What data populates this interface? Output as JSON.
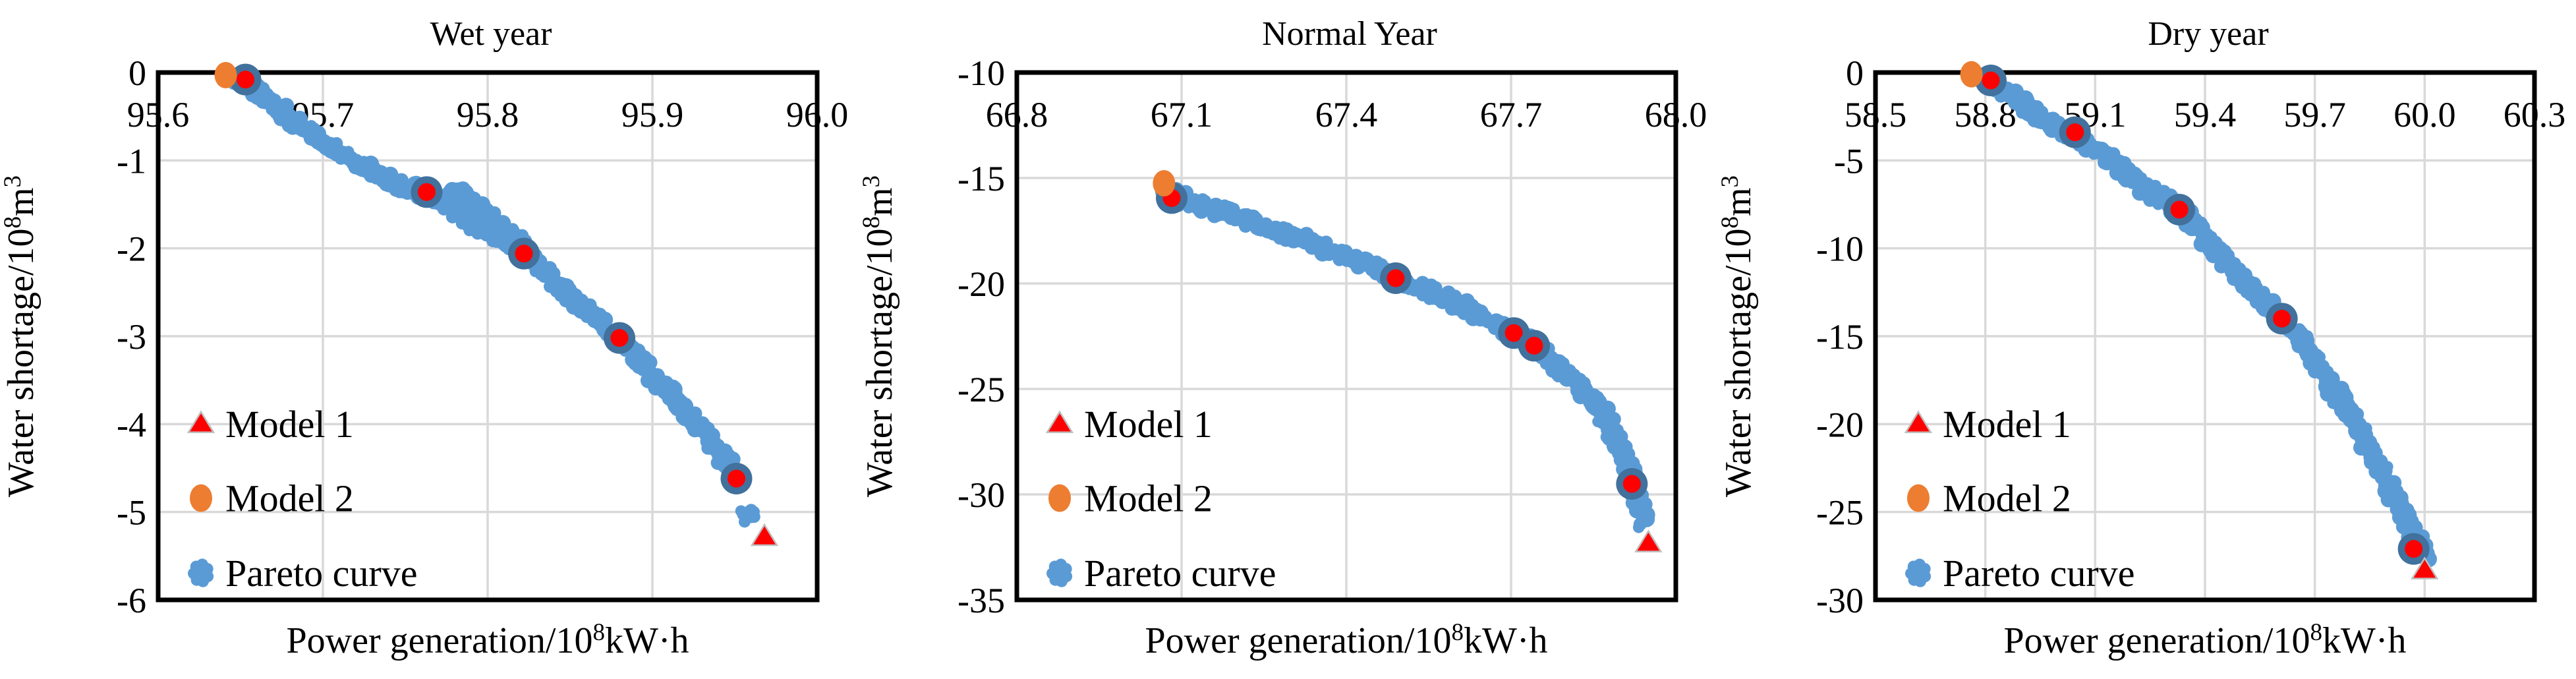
{
  "figure": {
    "background": "#FFFFFF",
    "colors": {
      "pareto": "#5B9BD5",
      "highlight_ring": "#41719C",
      "model1_red": "#FF0000",
      "model1_outline": "#BFBFBF",
      "model2_orange": "#ED7D31",
      "gridline": "#D9D9D9",
      "axis": "#000000",
      "text": "#000000"
    }
  },
  "chart_data": [
    {
      "type": "scatter",
      "title": "Wet year",
      "xlabel": "Power generation/10⁸kW·h",
      "ylabel": "Water shortage/10⁸m³",
      "xlim": [
        95.6,
        96.0
      ],
      "ylim": [
        -6,
        0
      ],
      "xticks": [
        95.6,
        95.7,
        95.8,
        95.9,
        96.0
      ],
      "xtick_labels": [
        "95.6",
        "95.7",
        "95.8",
        "95.9",
        "96.0"
      ],
      "yticks": [
        0,
        -1,
        -2,
        -3,
        -4,
        -5,
        -6
      ],
      "ytick_labels": [
        "0",
        "-1",
        "-2",
        "-3",
        "-4",
        "-5",
        "-6"
      ],
      "grid": true,
      "legend_position": "inside-left-bottom",
      "legend": [
        {
          "name": "Model 1",
          "marker": "triangle",
          "color": "#FF0000"
        },
        {
          "name": "Model 2",
          "marker": "circle",
          "color": "#ED7D31"
        },
        {
          "name": "Pareto curve",
          "marker": "blob",
          "color": "#5B9BD5"
        }
      ],
      "series": {
        "pareto_curve_band": [
          [
            95.648,
            -0.06
          ],
          [
            95.66,
            -0.22
          ],
          [
            95.672,
            -0.4
          ],
          [
            95.684,
            -0.58
          ],
          [
            95.696,
            -0.73
          ],
          [
            95.708,
            -0.88
          ],
          [
            95.722,
            -1.05
          ],
          [
            95.736,
            -1.2
          ],
          [
            95.75,
            -1.3
          ],
          [
            95.763,
            -1.38
          ],
          [
            95.772,
            -1.48
          ],
          [
            95.781,
            -1.6
          ],
          [
            95.79,
            -1.72
          ],
          [
            95.8,
            -1.83
          ],
          [
            95.81,
            -1.93
          ],
          [
            95.822,
            -2.06
          ],
          [
            95.832,
            -2.22
          ],
          [
            95.842,
            -2.4
          ],
          [
            95.852,
            -2.58
          ],
          [
            95.862,
            -2.74
          ],
          [
            95.872,
            -2.89
          ],
          [
            95.882,
            -3.05
          ],
          [
            95.892,
            -3.25
          ],
          [
            95.901,
            -3.45
          ],
          [
            95.91,
            -3.63
          ],
          [
            95.919,
            -3.83
          ],
          [
            95.928,
            -4.04
          ],
          [
            95.937,
            -4.24
          ],
          [
            95.945,
            -4.42
          ],
          [
            95.952,
            -4.6
          ]
        ],
        "pareto_curve_branch": [
          [
            95.778,
            -1.34
          ],
          [
            95.79,
            -1.5
          ],
          [
            95.802,
            -1.66
          ],
          [
            95.814,
            -1.83
          ],
          [
            95.824,
            -1.97
          ]
        ],
        "pareto_curve_outliers": [
          [
            95.958,
            -5.06
          ]
        ],
        "pareto_highlighted": [
          [
            95.653,
            -0.08
          ],
          [
            95.763,
            -1.36
          ],
          [
            95.822,
            -2.06
          ],
          [
            95.88,
            -3.02
          ],
          [
            95.951,
            -4.62
          ]
        ],
        "model_2_point": [
          95.641,
          -0.03
        ],
        "model_1_point": [
          95.968,
          -5.28
        ]
      }
    },
    {
      "type": "scatter",
      "title": "Normal Year",
      "xlabel": "Power generation/10⁸kW·h",
      "ylabel": "Water shortage/10⁸m³",
      "xlim": [
        66.8,
        68.0
      ],
      "ylim": [
        -35,
        -10
      ],
      "xticks": [
        66.8,
        67.1,
        67.4,
        67.7,
        68.0
      ],
      "xtick_labels": [
        "66.8",
        "67.1",
        "67.4",
        "67.7",
        "68.0"
      ],
      "yticks": [
        -10,
        -15,
        -20,
        -25,
        -30,
        -35
      ],
      "ytick_labels": [
        "-10",
        "-15",
        "-20",
        "-25",
        "-30",
        "-35"
      ],
      "grid": true,
      "legend_position": "inside-left-bottom",
      "legend": [
        {
          "name": "Model 1",
          "marker": "triangle",
          "color": "#FF0000"
        },
        {
          "name": "Model 2",
          "marker": "circle",
          "color": "#ED7D31"
        },
        {
          "name": "Pareto curve",
          "marker": "blob",
          "color": "#5B9BD5"
        }
      ],
      "series": {
        "pareto_curve_band": [
          [
            67.075,
            -15.7
          ],
          [
            67.11,
            -16.05
          ],
          [
            67.15,
            -16.4
          ],
          [
            67.19,
            -16.75
          ],
          [
            67.23,
            -17.1
          ],
          [
            67.27,
            -17.45
          ],
          [
            67.31,
            -17.8
          ],
          [
            67.35,
            -18.2
          ],
          [
            67.39,
            -18.6
          ],
          [
            67.43,
            -19.0
          ],
          [
            67.47,
            -19.45
          ],
          [
            67.5,
            -19.8
          ],
          [
            67.54,
            -20.25
          ],
          [
            67.58,
            -20.7
          ],
          [
            67.62,
            -21.2
          ],
          [
            67.66,
            -21.75
          ],
          [
            67.7,
            -22.3
          ],
          [
            67.74,
            -22.9
          ],
          [
            67.77,
            -23.5
          ],
          [
            67.8,
            -24.2
          ],
          [
            67.83,
            -25.0
          ],
          [
            67.86,
            -25.9
          ],
          [
            67.88,
            -26.8
          ],
          [
            67.9,
            -27.8
          ],
          [
            67.915,
            -28.8
          ],
          [
            67.928,
            -29.8
          ],
          [
            67.936,
            -30.7
          ],
          [
            67.94,
            -31.4
          ]
        ],
        "pareto_curve_branch": [],
        "pareto_curve_outliers": [],
        "pareto_highlighted": [
          [
            67.082,
            -15.95
          ],
          [
            67.49,
            -19.75
          ],
          [
            67.705,
            -22.35
          ],
          [
            67.742,
            -22.95
          ],
          [
            67.92,
            -29.5
          ]
        ],
        "model_2_point": [
          67.068,
          -15.25
        ],
        "model_1_point": [
          67.95,
          -32.3
        ]
      }
    },
    {
      "type": "scatter",
      "title": "Dry year",
      "xlabel": "Power generation/10⁸kW·h",
      "ylabel": "Water shortage/10⁸m³",
      "xlim": [
        58.5,
        60.3
      ],
      "ylim": [
        -30,
        0
      ],
      "xticks": [
        58.5,
        58.8,
        59.1,
        59.4,
        59.7,
        60.0,
        60.3
      ],
      "xtick_labels": [
        "58.5",
        "58.8",
        "59.1",
        "59.4",
        "59.7",
        "60.0",
        "60.3"
      ],
      "yticks": [
        0,
        -5,
        -10,
        -15,
        -20,
        -25,
        -30
      ],
      "ytick_labels": [
        "0",
        "-5",
        "-10",
        "-15",
        "-20",
        "-25",
        "-30"
      ],
      "grid": true,
      "legend_position": "inside-left-bottom",
      "legend": [
        {
          "name": "Model 1",
          "marker": "triangle",
          "color": "#FF0000"
        },
        {
          "name": "Model 2",
          "marker": "circle",
          "color": "#ED7D31"
        },
        {
          "name": "Pareto curve",
          "marker": "blob",
          "color": "#5B9BD5"
        }
      ],
      "series": {
        "pareto_curve_band": [
          [
            58.808,
            -0.25
          ],
          [
            58.83,
            -0.75
          ],
          [
            58.86,
            -1.2
          ],
          [
            58.89,
            -1.6
          ],
          [
            58.92,
            -2.05
          ],
          [
            58.95,
            -2.5
          ],
          [
            58.98,
            -2.9
          ],
          [
            59.01,
            -3.2
          ],
          [
            59.04,
            -3.5
          ],
          [
            59.07,
            -3.9
          ],
          [
            59.1,
            -4.35
          ],
          [
            59.14,
            -5.0
          ],
          [
            59.18,
            -5.7
          ],
          [
            59.22,
            -6.3
          ],
          [
            59.26,
            -6.9
          ],
          [
            59.3,
            -7.4
          ],
          [
            59.34,
            -8.0
          ],
          [
            59.38,
            -8.8
          ],
          [
            59.42,
            -9.8
          ],
          [
            59.46,
            -10.8
          ],
          [
            59.5,
            -11.7
          ],
          [
            59.54,
            -12.6
          ],
          [
            59.58,
            -13.4
          ],
          [
            59.62,
            -14.2
          ],
          [
            59.66,
            -15.2
          ],
          [
            59.7,
            -16.4
          ],
          [
            59.74,
            -17.7
          ],
          [
            59.78,
            -19.0
          ],
          [
            59.82,
            -20.4
          ],
          [
            59.86,
            -21.8
          ],
          [
            59.89,
            -23.0
          ],
          [
            59.92,
            -24.2
          ],
          [
            59.95,
            -25.3
          ],
          [
            59.97,
            -26.2
          ],
          [
            59.99,
            -27.1
          ],
          [
            60.0,
            -27.7
          ]
        ],
        "pareto_curve_branch": [],
        "pareto_curve_outliers": [],
        "pareto_highlighted": [
          [
            58.815,
            -0.45
          ],
          [
            59.045,
            -3.4
          ],
          [
            59.33,
            -7.8
          ],
          [
            59.61,
            -14.0
          ],
          [
            59.97,
            -27.1
          ]
        ],
        "model_2_point": [
          58.762,
          -0.1
        ],
        "model_1_point": [
          60.0,
          -28.3
        ]
      }
    }
  ]
}
